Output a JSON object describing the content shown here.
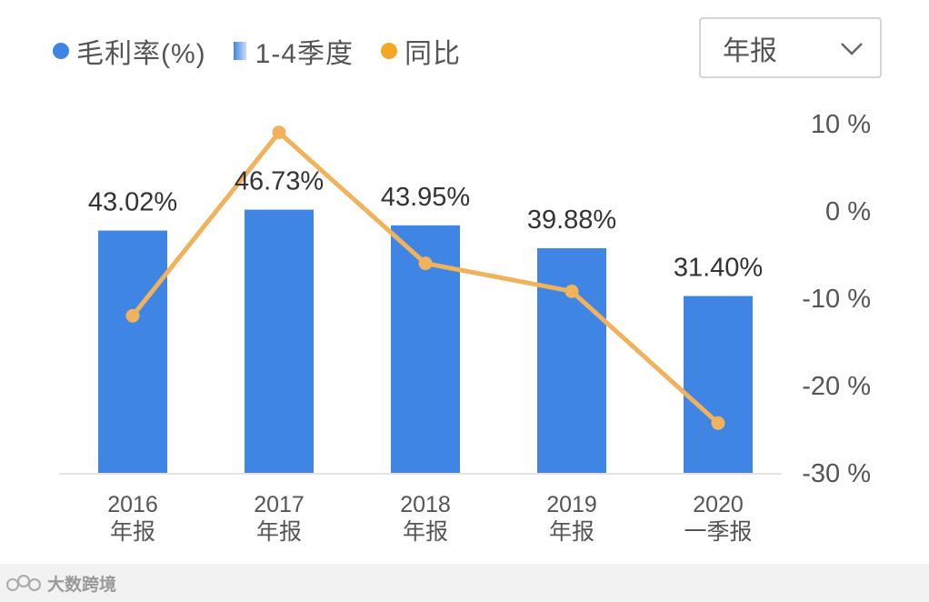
{
  "legend": {
    "margin_label": "毛利率(%)",
    "quarter_label": "1-4季度",
    "yoy_label": "同比"
  },
  "selector": {
    "value": "年报",
    "icon": "chevron-down-icon"
  },
  "watermark": {
    "text": "大数跨境"
  },
  "colors": {
    "bar": "#3f86e4",
    "line": "#f0b25a",
    "axis_text": "#555555",
    "yoy_legend": "#f5a623"
  },
  "chart_data": {
    "type": "bar",
    "categories": [
      [
        "2016",
        "年报"
      ],
      [
        "2017",
        "年报"
      ],
      [
        "2018",
        "年报"
      ],
      [
        "2019",
        "年报"
      ],
      [
        "2020",
        "一季报"
      ]
    ],
    "series": [
      {
        "name": "毛利率(%)",
        "type": "bar",
        "values": [
          43.02,
          46.73,
          43.95,
          39.88,
          31.4
        ],
        "labels": [
          "43.02%",
          "46.73%",
          "43.95%",
          "39.88%",
          "31.40%"
        ]
      },
      {
        "name": "同比",
        "type": "line",
        "axis": "right",
        "values": [
          -12,
          9,
          -6,
          -9.2,
          -24.3
        ]
      }
    ],
    "y_right": {
      "ticks": [
        10,
        0,
        -10,
        -20,
        -30
      ],
      "tick_labels": [
        "10 %",
        "0 %",
        "-10 %",
        "-20 %",
        "-30 %"
      ],
      "range": [
        -30,
        10
      ]
    },
    "y_left_range": [
      0,
      62
    ],
    "grid": false
  }
}
